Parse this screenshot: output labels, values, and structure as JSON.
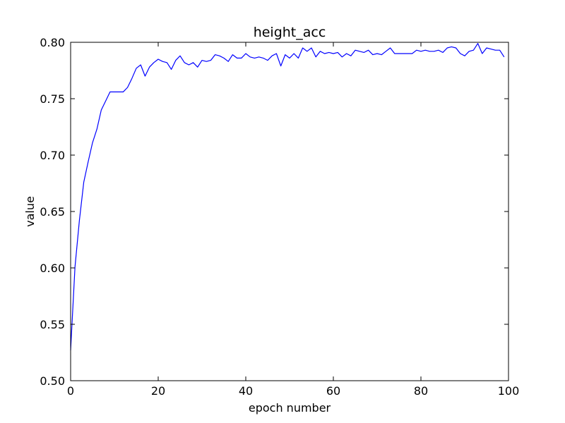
{
  "chart_data": {
    "type": "line",
    "title": "height_acc",
    "xlabel": "epoch number",
    "ylabel": "value",
    "xlim": [
      0,
      100
    ],
    "ylim": [
      0.5,
      0.8
    ],
    "xticks": [
      0,
      20,
      40,
      60,
      80,
      100
    ],
    "xtick_labels": [
      "0",
      "20",
      "40",
      "60",
      "80",
      "100"
    ],
    "yticks": [
      0.5,
      0.55,
      0.6,
      0.65,
      0.7,
      0.75,
      0.8
    ],
    "ytick_labels": [
      "0.50",
      "0.55",
      "0.60",
      "0.65",
      "0.70",
      "0.75",
      "0.80"
    ],
    "grid": false,
    "series": [
      {
        "color": "#0000ff",
        "x": [
          0,
          1,
          2,
          3,
          4,
          5,
          6,
          7,
          8,
          9,
          10,
          11,
          12,
          13,
          14,
          15,
          16,
          17,
          18,
          19,
          20,
          21,
          22,
          23,
          24,
          25,
          26,
          27,
          28,
          29,
          30,
          31,
          32,
          33,
          34,
          35,
          36,
          37,
          38,
          39,
          40,
          41,
          42,
          43,
          44,
          45,
          46,
          47,
          48,
          49,
          50,
          51,
          52,
          53,
          54,
          55,
          56,
          57,
          58,
          59,
          60,
          61,
          62,
          63,
          64,
          65,
          66,
          67,
          68,
          69,
          70,
          71,
          72,
          73,
          74,
          75,
          76,
          77,
          78,
          79,
          80,
          81,
          82,
          83,
          84,
          85,
          86,
          87,
          88,
          89,
          90,
          91,
          92,
          93,
          94,
          95,
          96,
          97,
          98,
          99
        ],
        "y": [
          0.527,
          0.601,
          0.642,
          0.676,
          0.694,
          0.711,
          0.723,
          0.74,
          0.748,
          0.756,
          0.756,
          0.756,
          0.756,
          0.76,
          0.768,
          0.777,
          0.78,
          0.77,
          0.778,
          0.782,
          0.785,
          0.783,
          0.782,
          0.776,
          0.784,
          0.788,
          0.782,
          0.78,
          0.782,
          0.778,
          0.784,
          0.783,
          0.784,
          0.789,
          0.788,
          0.786,
          0.783,
          0.789,
          0.786,
          0.786,
          0.79,
          0.787,
          0.786,
          0.787,
          0.786,
          0.784,
          0.788,
          0.79,
          0.779,
          0.789,
          0.786,
          0.79,
          0.786,
          0.795,
          0.792,
          0.795,
          0.787,
          0.792,
          0.79,
          0.791,
          0.79,
          0.791,
          0.787,
          0.79,
          0.788,
          0.793,
          0.792,
          0.791,
          0.793,
          0.789,
          0.79,
          0.789,
          0.792,
          0.795,
          0.79,
          0.79,
          0.79,
          0.79,
          0.79,
          0.793,
          0.792,
          0.793,
          0.792,
          0.792,
          0.793,
          0.791,
          0.795,
          0.796,
          0.795,
          0.79,
          0.788,
          0.792,
          0.793,
          0.799,
          0.79,
          0.795,
          0.794,
          0.793,
          0.793,
          0.787
        ]
      }
    ]
  }
}
